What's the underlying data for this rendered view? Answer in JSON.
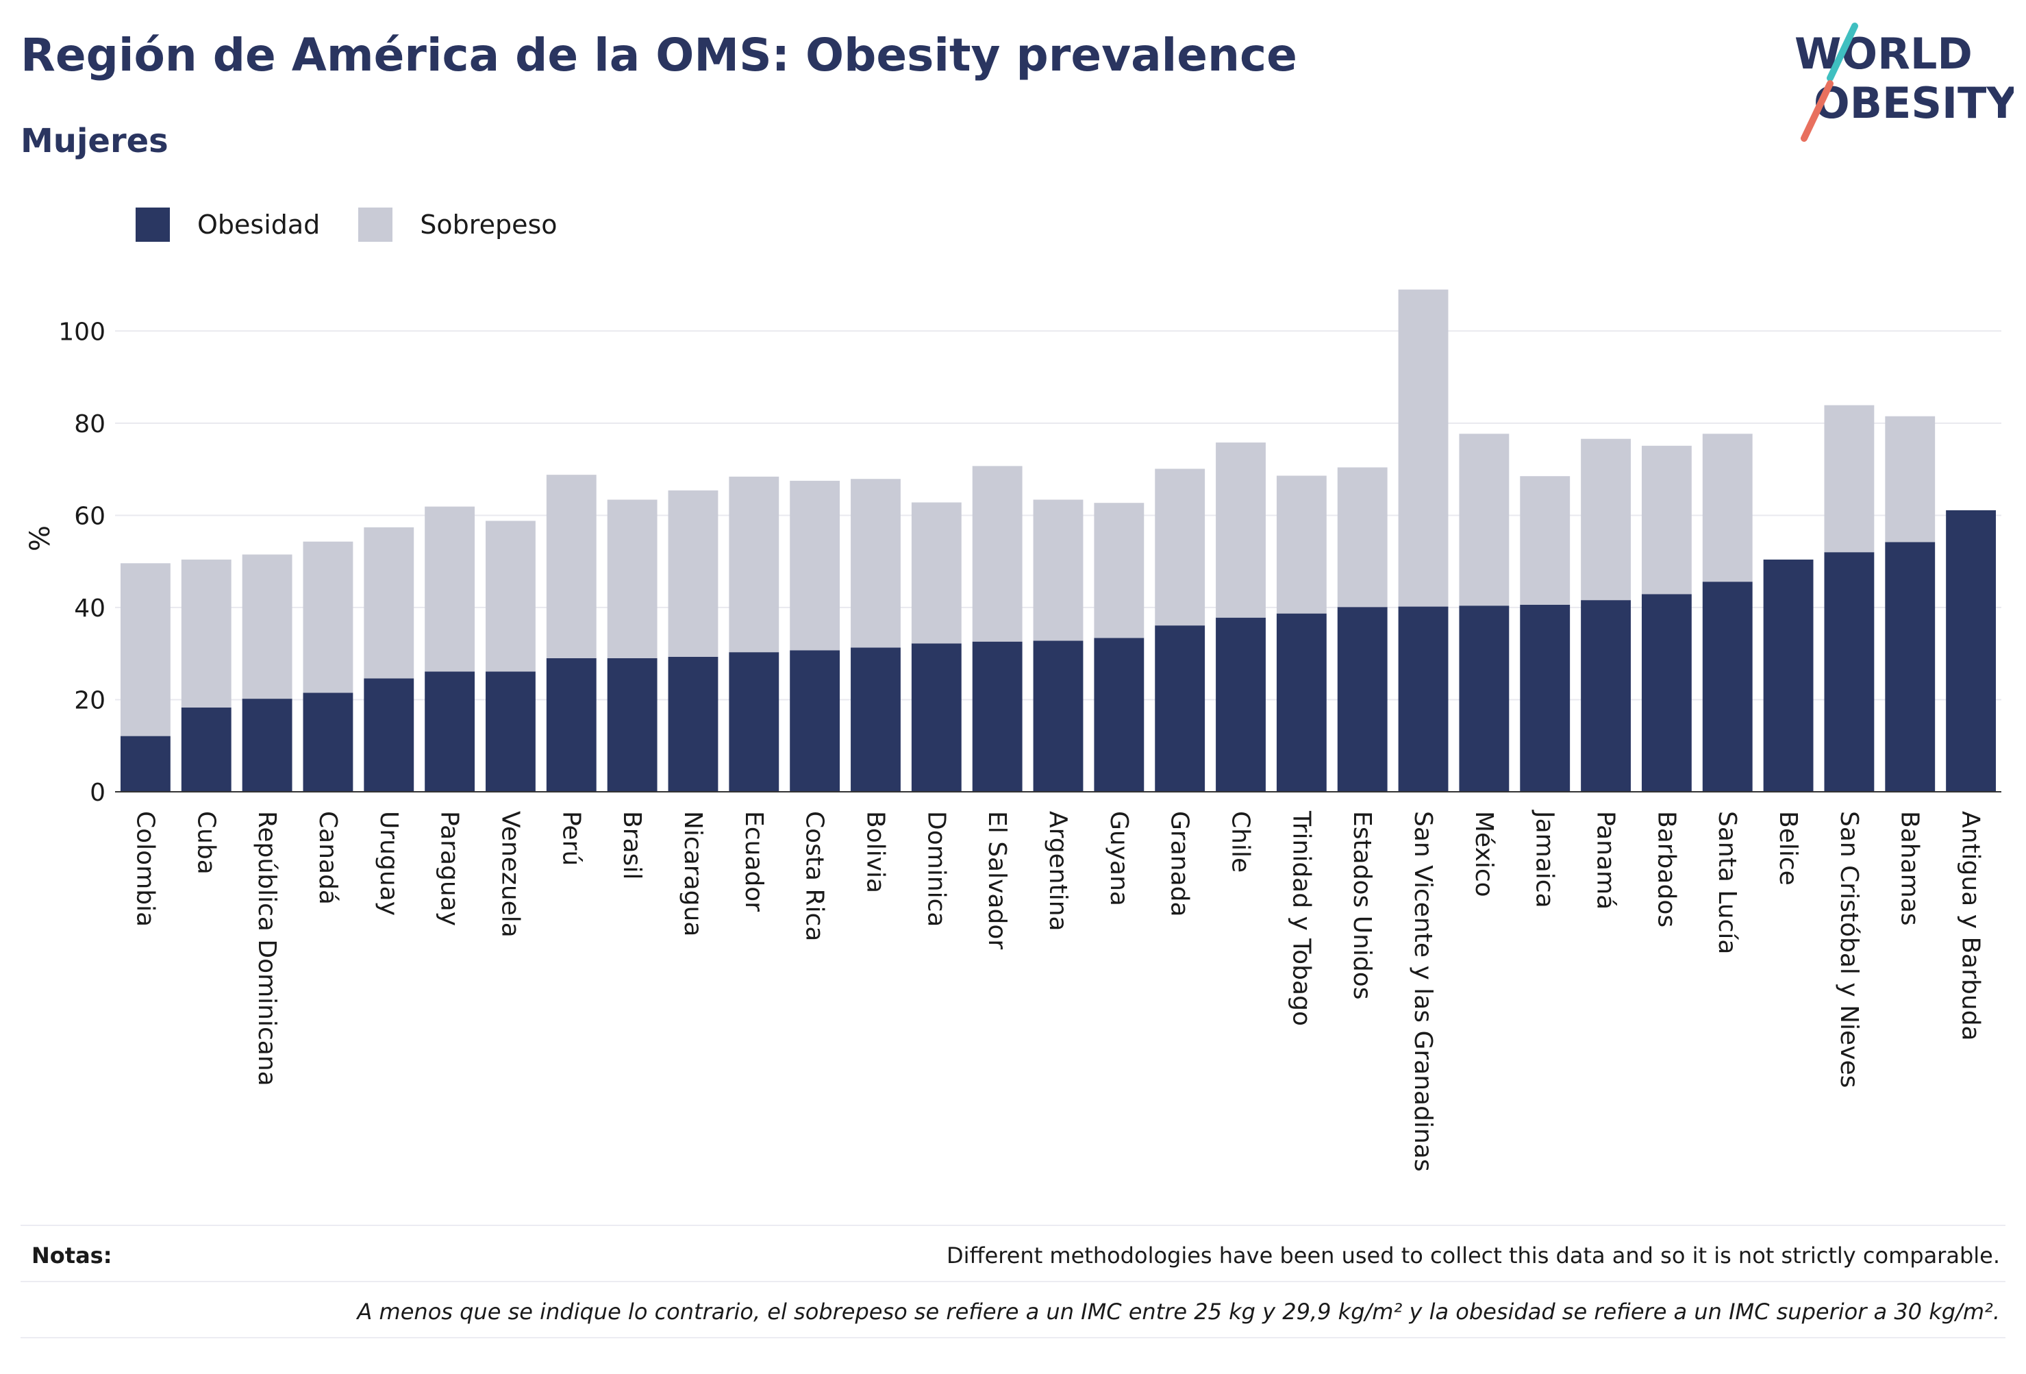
{
  "header": {
    "title": "Región de América de la OMS: Obesity prevalence",
    "subtitle": "Mujeres",
    "logo_text": [
      "WORLD",
      "OBESITY"
    ]
  },
  "colors": {
    "obesity": "#2a3762",
    "overweight": "#c9cbd6",
    "title": "#2a3560",
    "logo_teal": "#3fbfc0",
    "logo_coral": "#e8705e"
  },
  "notes": {
    "label": "Notas:",
    "line1": "Different methodologies have been used to collect this data and so it is not strictly comparable.",
    "line2": "A menos que se indique lo contrario, el sobrepeso se refiere a un IMC entre 25 kg y 29,9 kg/m² y la obesidad se refiere a un IMC superior a 30 kg/m²."
  },
  "chart_data": {
    "type": "bar",
    "stacked": true,
    "ylabel": "%",
    "ylim": [
      0,
      110
    ],
    "yticks": [
      0,
      20,
      40,
      60,
      80,
      100
    ],
    "grid": true,
    "legend_position": "top-left",
    "categories": [
      "Colombia",
      "Cuba",
      "República Dominicana",
      "Canadá",
      "Uruguay",
      "Paraguay",
      "Venezuela",
      "Perú",
      "Brasil",
      "Nicaragua",
      "Ecuador",
      "Costa Rica",
      "Bolivia",
      "Dominica",
      "El Salvador",
      "Argentina",
      "Guyana",
      "Granada",
      "Chile",
      "Trinidad y Tobago",
      "Estados Unidos",
      "San Vicente y las Granadinas",
      "México",
      "Jamaica",
      "Panamá",
      "Barbados",
      "Santa Lucía",
      "Belice",
      "San Cristóbal y Nieves",
      "Bahamas",
      "Antigua y Barbuda"
    ],
    "series": [
      {
        "name": "Obesidad",
        "values": [
          12.1,
          18.3,
          20.2,
          21.5,
          24.6,
          26.1,
          26.1,
          29.0,
          29.0,
          29.3,
          30.3,
          30.7,
          31.3,
          32.2,
          32.6,
          32.8,
          33.4,
          36.1,
          37.8,
          38.7,
          40.1,
          40.2,
          40.4,
          40.6,
          41.6,
          42.9,
          45.6,
          50.4,
          52.0,
          54.2,
          61.1
        ]
      },
      {
        "name": "Sobrepeso",
        "values": [
          37.5,
          32.1,
          31.3,
          32.8,
          32.8,
          35.8,
          32.7,
          39.8,
          34.4,
          36.1,
          38.1,
          36.8,
          36.6,
          30.6,
          38.1,
          30.6,
          29.3,
          34.0,
          38.0,
          29.9,
          30.3,
          68.8,
          37.3,
          27.9,
          35.0,
          32.2,
          32.1,
          0,
          31.9,
          27.3,
          0
        ]
      }
    ]
  }
}
